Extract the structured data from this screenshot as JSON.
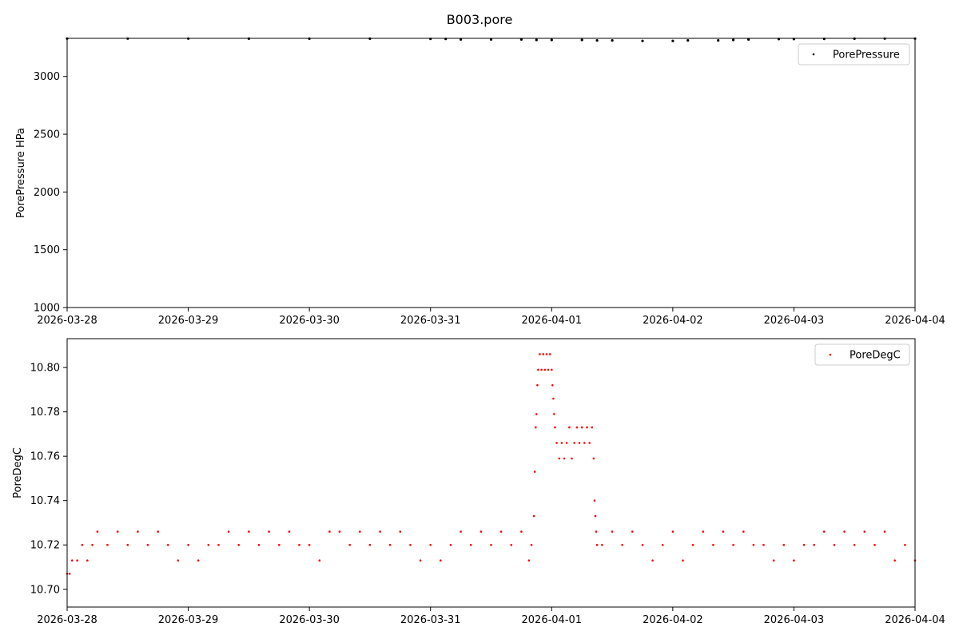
{
  "figure": {
    "title": "B003.pore"
  },
  "chart_data": [
    {
      "type": "scatter",
      "xlabel": "",
      "ylabel": "PorePressure HPa",
      "x_ticks": [
        "2026-03-28",
        "2026-03-29",
        "2026-03-30",
        "2026-03-31",
        "2026-04-01",
        "2026-04-02",
        "2026-04-03",
        "2026-04-04"
      ],
      "y_ticks": [
        1000,
        1500,
        2000,
        2500,
        3000
      ],
      "xlim": [
        "2026-03-28T00:00",
        "2026-04-04T00:00"
      ],
      "ylim": [
        1000,
        3330
      ],
      "legend": {
        "position": "top-right"
      },
      "series": [
        {
          "name": "PorePressure",
          "color": "#000000",
          "points": [
            [
              "2026-03-28T00:00",
              3328
            ],
            [
              "2026-03-28T12:00",
              3328
            ],
            [
              "2026-03-29T00:00",
              3328
            ],
            [
              "2026-03-29T12:00",
              3327
            ],
            [
              "2026-03-30T00:00",
              3327
            ],
            [
              "2026-03-30T12:00",
              3327
            ],
            [
              "2026-03-31T00:00",
              3326
            ],
            [
              "2026-03-31T03:00",
              3325
            ],
            [
              "2026-03-31T06:00",
              3320
            ],
            [
              "2026-03-31T12:00",
              3320
            ],
            [
              "2026-03-31T18:00",
              3320
            ],
            [
              "2026-03-31T21:00",
              3316
            ],
            [
              "2026-04-01T00:00",
              3316
            ],
            [
              "2026-04-01T06:00",
              3316
            ],
            [
              "2026-04-01T09:00",
              3312
            ],
            [
              "2026-04-01T12:00",
              3312
            ],
            [
              "2026-04-01T18:00",
              3308
            ],
            [
              "2026-04-02T00:00",
              3308
            ],
            [
              "2026-04-02T03:00",
              3312
            ],
            [
              "2026-04-02T09:00",
              3312
            ],
            [
              "2026-04-02T12:00",
              3316
            ],
            [
              "2026-04-02T15:00",
              3320
            ],
            [
              "2026-04-02T21:00",
              3324
            ],
            [
              "2026-04-03T00:00",
              3324
            ],
            [
              "2026-04-03T06:00",
              3326
            ],
            [
              "2026-04-03T12:00",
              3327
            ],
            [
              "2026-04-03T18:00",
              3328
            ],
            [
              "2026-04-04T00:00",
              3328
            ]
          ]
        }
      ]
    },
    {
      "type": "scatter",
      "xlabel": "",
      "ylabel": "PoreDegC",
      "x_ticks": [
        "2026-03-28",
        "2026-03-29",
        "2026-03-30",
        "2026-03-31",
        "2026-04-01",
        "2026-04-02",
        "2026-04-03",
        "2026-04-04"
      ],
      "y_ticks": [
        "10.70",
        "10.72",
        "10.74",
        "10.76",
        "10.78",
        "10.80"
      ],
      "xlim": [
        "2026-03-28T00:00",
        "2026-04-04T00:00"
      ],
      "ylim": [
        10.692,
        10.813
      ],
      "legend": {
        "position": "top-right"
      },
      "series": [
        {
          "name": "PoreDegC",
          "color": "#ff0000",
          "points": [
            [
              "2026-03-28T00:00",
              10.707
            ],
            [
              "2026-03-28T00:30",
              10.707
            ],
            [
              "2026-03-28T01:00",
              10.713
            ],
            [
              "2026-03-28T02:00",
              10.713
            ],
            [
              "2026-03-28T03:00",
              10.72
            ],
            [
              "2026-03-28T04:00",
              10.713
            ],
            [
              "2026-03-28T05:00",
              10.72
            ],
            [
              "2026-03-28T06:00",
              10.726
            ],
            [
              "2026-03-28T08:00",
              10.72
            ],
            [
              "2026-03-28T10:00",
              10.726
            ],
            [
              "2026-03-28T12:00",
              10.72
            ],
            [
              "2026-03-28T14:00",
              10.726
            ],
            [
              "2026-03-28T16:00",
              10.72
            ],
            [
              "2026-03-28T18:00",
              10.726
            ],
            [
              "2026-03-28T20:00",
              10.72
            ],
            [
              "2026-03-28T22:00",
              10.713
            ],
            [
              "2026-03-29T00:00",
              10.72
            ],
            [
              "2026-03-29T02:00",
              10.713
            ],
            [
              "2026-03-29T04:00",
              10.72
            ],
            [
              "2026-03-29T06:00",
              10.72
            ],
            [
              "2026-03-29T08:00",
              10.726
            ],
            [
              "2026-03-29T10:00",
              10.72
            ],
            [
              "2026-03-29T12:00",
              10.726
            ],
            [
              "2026-03-29T14:00",
              10.72
            ],
            [
              "2026-03-29T16:00",
              10.726
            ],
            [
              "2026-03-29T18:00",
              10.72
            ],
            [
              "2026-03-29T20:00",
              10.726
            ],
            [
              "2026-03-29T22:00",
              10.72
            ],
            [
              "2026-03-30T00:00",
              10.72
            ],
            [
              "2026-03-30T02:00",
              10.713
            ],
            [
              "2026-03-30T04:00",
              10.726
            ],
            [
              "2026-03-30T06:00",
              10.726
            ],
            [
              "2026-03-30T08:00",
              10.72
            ],
            [
              "2026-03-30T10:00",
              10.726
            ],
            [
              "2026-03-30T12:00",
              10.72
            ],
            [
              "2026-03-30T14:00",
              10.726
            ],
            [
              "2026-03-30T16:00",
              10.72
            ],
            [
              "2026-03-30T18:00",
              10.726
            ],
            [
              "2026-03-30T20:00",
              10.72
            ],
            [
              "2026-03-30T22:00",
              10.713
            ],
            [
              "2026-03-31T00:00",
              10.72
            ],
            [
              "2026-03-31T02:00",
              10.713
            ],
            [
              "2026-03-31T04:00",
              10.72
            ],
            [
              "2026-03-31T06:00",
              10.726
            ],
            [
              "2026-03-31T08:00",
              10.72
            ],
            [
              "2026-03-31T10:00",
              10.726
            ],
            [
              "2026-03-31T12:00",
              10.72
            ],
            [
              "2026-03-31T14:00",
              10.726
            ],
            [
              "2026-03-31T16:00",
              10.72
            ],
            [
              "2026-03-31T18:00",
              10.726
            ],
            [
              "2026-03-31T19:30",
              10.713
            ],
            [
              "2026-03-31T20:00",
              10.72
            ],
            [
              "2026-03-31T20:30",
              10.733
            ],
            [
              "2026-03-31T20:40",
              10.753
            ],
            [
              "2026-03-31T20:50",
              10.773
            ],
            [
              "2026-03-31T21:00",
              10.779
            ],
            [
              "2026-03-31T21:10",
              10.792
            ],
            [
              "2026-03-31T21:20",
              10.799
            ],
            [
              "2026-03-31T21:40",
              10.806
            ],
            [
              "2026-03-31T22:00",
              10.799
            ],
            [
              "2026-03-31T22:20",
              10.806
            ],
            [
              "2026-03-31T22:40",
              10.799
            ],
            [
              "2026-03-31T23:00",
              10.806
            ],
            [
              "2026-03-31T23:20",
              10.799
            ],
            [
              "2026-03-31T23:40",
              10.806
            ],
            [
              "2026-04-01T00:00",
              10.799
            ],
            [
              "2026-04-01T00:10",
              10.792
            ],
            [
              "2026-04-01T00:20",
              10.786
            ],
            [
              "2026-04-01T00:30",
              10.779
            ],
            [
              "2026-04-01T00:40",
              10.773
            ],
            [
              "2026-04-01T01:00",
              10.766
            ],
            [
              "2026-04-01T01:30",
              10.759
            ],
            [
              "2026-04-01T02:00",
              10.766
            ],
            [
              "2026-04-01T02:30",
              10.759
            ],
            [
              "2026-04-01T03:00",
              10.766
            ],
            [
              "2026-04-01T03:30",
              10.773
            ],
            [
              "2026-04-01T04:00",
              10.759
            ],
            [
              "2026-04-01T04:30",
              10.766
            ],
            [
              "2026-04-01T05:00",
              10.773
            ],
            [
              "2026-04-01T05:30",
              10.766
            ],
            [
              "2026-04-01T06:00",
              10.773
            ],
            [
              "2026-04-01T06:30",
              10.766
            ],
            [
              "2026-04-01T07:00",
              10.773
            ],
            [
              "2026-04-01T07:30",
              10.766
            ],
            [
              "2026-04-01T08:00",
              10.773
            ],
            [
              "2026-04-01T08:20",
              10.759
            ],
            [
              "2026-04-01T08:30",
              10.74
            ],
            [
              "2026-04-01T08:40",
              10.733
            ],
            [
              "2026-04-01T08:50",
              10.726
            ],
            [
              "2026-04-01T09:00",
              10.72
            ],
            [
              "2026-04-01T10:00",
              10.72
            ],
            [
              "2026-04-01T12:00",
              10.726
            ],
            [
              "2026-04-01T14:00",
              10.72
            ],
            [
              "2026-04-01T16:00",
              10.726
            ],
            [
              "2026-04-01T18:00",
              10.72
            ],
            [
              "2026-04-01T20:00",
              10.713
            ],
            [
              "2026-04-01T22:00",
              10.72
            ],
            [
              "2026-04-02T00:00",
              10.726
            ],
            [
              "2026-04-02T02:00",
              10.713
            ],
            [
              "2026-04-02T04:00",
              10.72
            ],
            [
              "2026-04-02T06:00",
              10.726
            ],
            [
              "2026-04-02T08:00",
              10.72
            ],
            [
              "2026-04-02T10:00",
              10.726
            ],
            [
              "2026-04-02T12:00",
              10.72
            ],
            [
              "2026-04-02T14:00",
              10.726
            ],
            [
              "2026-04-02T16:00",
              10.72
            ],
            [
              "2026-04-02T18:00",
              10.72
            ],
            [
              "2026-04-02T20:00",
              10.713
            ],
            [
              "2026-04-02T22:00",
              10.72
            ],
            [
              "2026-04-03T00:00",
              10.713
            ],
            [
              "2026-04-03T02:00",
              10.72
            ],
            [
              "2026-04-03T04:00",
              10.72
            ],
            [
              "2026-04-03T06:00",
              10.726
            ],
            [
              "2026-04-03T08:00",
              10.72
            ],
            [
              "2026-04-03T10:00",
              10.726
            ],
            [
              "2026-04-03T12:00",
              10.72
            ],
            [
              "2026-04-03T14:00",
              10.726
            ],
            [
              "2026-04-03T16:00",
              10.72
            ],
            [
              "2026-04-03T18:00",
              10.726
            ],
            [
              "2026-04-03T20:00",
              10.713
            ],
            [
              "2026-04-03T22:00",
              10.72
            ],
            [
              "2026-04-04T00:00",
              10.713
            ]
          ]
        }
      ]
    }
  ]
}
